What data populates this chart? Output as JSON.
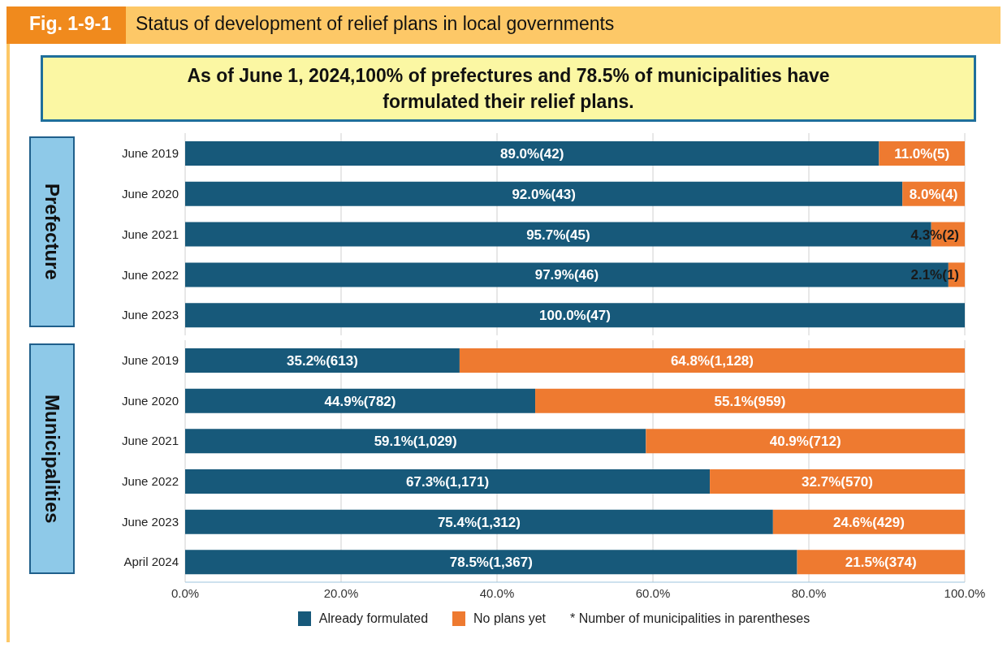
{
  "chart_data": [
    {
      "type": "bar",
      "orientation": "horizontal",
      "stacked": true,
      "title": "Status of development of relief plans in local governments",
      "subtitle": "As of June 1, 2024,100% of prefectures and 78.5% of municipalities have formulated their relief plans.",
      "annotations": [
        "Fig. 1-9-1"
      ],
      "ylabel": "Prefecture",
      "categories": [
        "June 2019",
        "June 2020",
        "June 2021",
        "June 2022",
        "June 2023"
      ],
      "series": [
        {
          "color": "#17597a",
          "values": [
            89.0,
            92.0,
            95.7,
            97.9,
            100.0
          ],
          "value_labels": [
            "89.0%(42)",
            "92.0%(43)",
            "95.7%(45)",
            "97.9%(46)",
            "100.0%(47)"
          ]
        },
        {
          "color": "#ee7a30",
          "values": [
            11.0,
            8.0,
            4.3,
            2.1,
            null
          ],
          "value_labels": [
            "11.0%(5)",
            "8.0%(4)",
            "4.3%(2)",
            "2.1%(1)",
            null
          ]
        }
      ],
      "xlim": [
        0,
        100
      ],
      "xticks": [
        {
          "value": 0,
          "label": null
        },
        {
          "value": 20,
          "label": null
        },
        {
          "value": 40,
          "label": null
        },
        {
          "value": 60,
          "label": null
        },
        {
          "value": 80,
          "label": null
        },
        {
          "value": 100,
          "label": null
        }
      ],
      "tick_labels": "y",
      "grid": "x"
    },
    {
      "type": "bar",
      "orientation": "horizontal",
      "stacked": true,
      "ylabel": "Municipalities",
      "annotations": [
        "* Number of municipalities in parentheses"
      ],
      "categories": [
        "June 2019",
        "June 2020",
        "June 2021",
        "June 2022",
        "June 2023",
        "April 2024"
      ],
      "series": [
        {
          "name": "Already formulated",
          "color": "#17597a",
          "values": [
            35.2,
            44.9,
            59.1,
            67.3,
            75.4,
            78.5
          ],
          "value_labels": [
            "35.2%(613)",
            "44.9%(782)",
            "59.1%(1,029)",
            "67.3%(1,171)",
            "75.4%(1,312)",
            "78.5%(1,367)"
          ]
        },
        {
          "name": "No plans yet",
          "color": "#ee7a30",
          "values": [
            64.8,
            55.1,
            40.9,
            32.7,
            24.6,
            21.5
          ],
          "value_labels": [
            "64.8%(1,128)",
            "55.1%(959)",
            "40.9%(712)",
            "32.7%(570)",
            "24.6%(429)",
            "21.5%(374)"
          ]
        }
      ],
      "xlim": [
        0,
        100
      ],
      "xticks": [
        {
          "value": 0,
          "label": "0.0%"
        },
        {
          "value": 20,
          "label": "20.0%"
        },
        {
          "value": 40,
          "label": "40.0%"
        },
        {
          "value": 60,
          "label": "60.0%"
        },
        {
          "value": 80,
          "label": "80.0%"
        },
        {
          "value": 100,
          "label": "100.0%"
        }
      ],
      "grid": "x",
      "legend": "bottom"
    }
  ]
}
